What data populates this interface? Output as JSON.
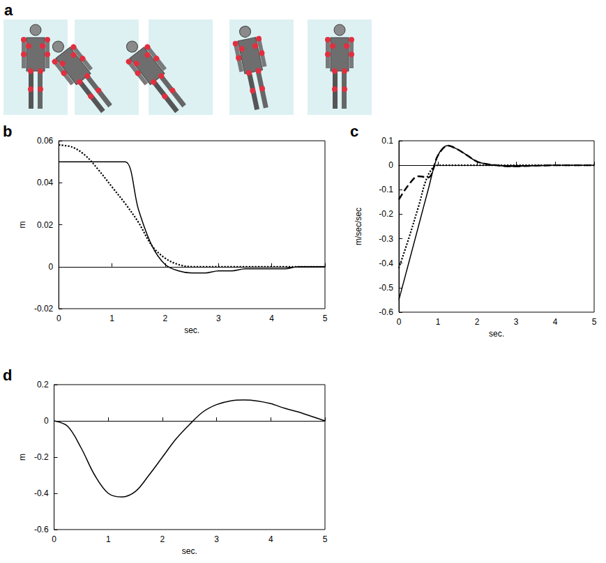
{
  "panel_a": {
    "label": "a"
  },
  "chart_data": [
    {
      "type": "line",
      "title": "b",
      "xlabel": "sec.",
      "ylabel": "m",
      "x": [
        0,
        0.25,
        0.5,
        0.75,
        1,
        1.25,
        1.5,
        1.75,
        2,
        2.25,
        2.5,
        2.75,
        3,
        3.25,
        3.5,
        3.75,
        4,
        4.25,
        4.5,
        4.75,
        5
      ],
      "series": [
        {
          "color": "#000000",
          "line_style": "solid",
          "values": [
            0.05,
            0.05,
            0.05,
            0.05,
            0.05,
            0.05,
            0.027,
            0.01,
            0.001,
            -0.002,
            -0.003,
            -0.003,
            -0.002,
            -0.002,
            -0.001,
            -0.001,
            -0.001,
            -0.001,
            0,
            0,
            0
          ]
        },
        {
          "color": "#000000",
          "line_style": "dotted",
          "values": [
            0.058,
            0.057,
            0.053,
            0.046,
            0.038,
            0.03,
            0.021,
            0.01,
            0.004,
            0.001,
            0,
            0,
            0,
            0,
            0,
            0,
            0,
            0,
            0,
            0,
            0
          ]
        }
      ],
      "xlim": [
        0,
        5
      ],
      "xticks": [
        0,
        1,
        2,
        3,
        4,
        5
      ],
      "ylim": [
        -0.02,
        0.06
      ],
      "yticks": [
        -0.02,
        0,
        0.02,
        0.04,
        0.06
      ],
      "grid": false
    },
    {
      "type": "line",
      "title": "c",
      "xlabel": "sec.",
      "ylabel": "m/sec/sec",
      "x": [
        0,
        0.25,
        0.5,
        0.75,
        1,
        1.25,
        1.5,
        1.75,
        2,
        2.25,
        2.5,
        2.75,
        3,
        3.25,
        3.5,
        3.75,
        4,
        4.25,
        4.5,
        4.75,
        5
      ],
      "series": [
        {
          "color": "#000000",
          "line_style": "solid",
          "values": [
            -0.55,
            -0.4,
            -0.25,
            -0.1,
            0.04,
            0.08,
            0.065,
            0.04,
            0.015,
            0.005,
            0,
            -0.004,
            -0.005,
            -0.003,
            -0.002,
            -0.001,
            0,
            0,
            0,
            0,
            0
          ]
        },
        {
          "color": "#000000",
          "line_style": "dashed",
          "values": [
            -0.14,
            -0.08,
            -0.045,
            -0.05,
            0.04,
            0.08,
            0.065,
            0.04,
            0.015,
            0.005,
            0,
            -0.004,
            -0.005,
            -0.003,
            -0.002,
            -0.001,
            0,
            0,
            0,
            0,
            0
          ]
        },
        {
          "color": "#000000",
          "line_style": "dotted",
          "values": [
            -0.42,
            -0.3,
            -0.17,
            -0.04,
            0,
            0,
            0,
            0,
            0,
            0,
            0,
            0,
            0,
            0,
            0,
            0,
            0,
            0,
            0,
            0,
            0
          ]
        }
      ],
      "xlim": [
        0,
        5
      ],
      "xticks": [
        0,
        1,
        2,
        3,
        4,
        5
      ],
      "ylim": [
        -0.6,
        0.1
      ],
      "yticks": [
        -0.6,
        -0.5,
        -0.4,
        -0.3,
        -0.2,
        -0.1,
        0,
        0.1
      ],
      "grid": false
    },
    {
      "type": "line",
      "title": "d",
      "xlabel": "sec.",
      "ylabel": "m",
      "x": [
        0,
        0.25,
        0.5,
        0.75,
        1,
        1.25,
        1.5,
        1.75,
        2,
        2.25,
        2.5,
        2.75,
        3,
        3.25,
        3.5,
        3.75,
        4,
        4.25,
        4.5,
        4.75,
        5
      ],
      "series": [
        {
          "color": "#000000",
          "line_style": "solid",
          "values": [
            0,
            -0.03,
            -0.15,
            -0.3,
            -0.4,
            -0.42,
            -0.39,
            -0.3,
            -0.2,
            -0.1,
            -0.02,
            0.05,
            0.09,
            0.11,
            0.115,
            0.11,
            0.095,
            0.07,
            0.05,
            0.025,
            0
          ]
        }
      ],
      "xlim": [
        0,
        5
      ],
      "xticks": [
        0,
        1,
        2,
        3,
        4,
        5
      ],
      "ylim": [
        -0.6,
        0.2
      ],
      "yticks": [
        -0.6,
        -0.4,
        -0.2,
        0,
        0.2
      ],
      "grid": false
    }
  ]
}
